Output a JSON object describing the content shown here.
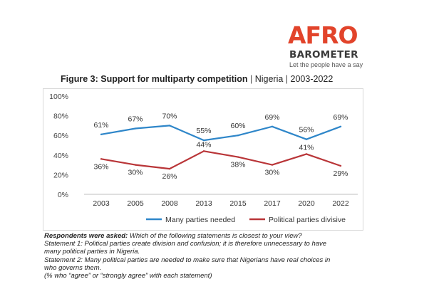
{
  "logo": {
    "afro_text": "AFRO",
    "barometer_text": "BAROMETER",
    "tagline": "Let the people have a say"
  },
  "title": {
    "main": "Figure 3: Support for multiparty competition",
    "sep1": " | ",
    "country": "Nigeria",
    "sep2": " | ",
    "years": "2003-2022"
  },
  "chart_data": {
    "type": "line",
    "categories": [
      "2003",
      "2005",
      "2008",
      "2013",
      "2015",
      "2017",
      "2020",
      "2022"
    ],
    "ylim": [
      0,
      100
    ],
    "yticks": [
      "0%",
      "20%",
      "40%",
      "60%",
      "80%",
      "100%"
    ],
    "ytick_values": [
      0,
      20,
      40,
      60,
      80,
      100
    ],
    "grid": false,
    "legend_position": "bottom",
    "series": [
      {
        "name": "Many parties needed",
        "color": "#2e86c9",
        "values": [
          61,
          67,
          70,
          55,
          60,
          69,
          56,
          69
        ],
        "labels": [
          "61%",
          "67%",
          "70%",
          "55%",
          "60%",
          "69%",
          "56%",
          "69%"
        ]
      },
      {
        "name": "Political parties divisive",
        "color": "#b93538",
        "values": [
          36,
          30,
          26,
          44,
          38,
          30,
          41,
          29
        ],
        "labels": [
          "36%",
          "30%",
          "26%",
          "44%",
          "38%",
          "30%",
          "41%",
          "29%"
        ]
      }
    ]
  },
  "notes": {
    "question_label": "Respondents were asked:",
    "question_text": " Which of the following statements is closest to your view?",
    "statement1": "Statement 1: Political parties create division and confusion; it is therefore unnecessary to have many political parties in Nigeria.",
    "statement2": "Statement 2: Many political parties are needed to make sure that Nigerians have real choices in who governs them.",
    "footnote": "(% who “agree” or “strongly agree” with each statement)"
  }
}
